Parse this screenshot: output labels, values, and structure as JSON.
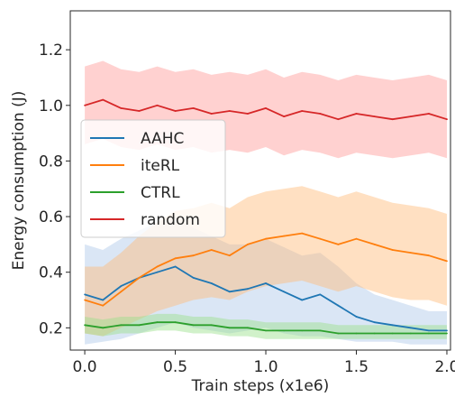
{
  "chart_data": {
    "type": "line",
    "title": "",
    "xlabel": "Train steps (x1e6)",
    "ylabel": "Energy consumption (J)",
    "xlim": [
      -0.08,
      2.02
    ],
    "ylim": [
      0.12,
      1.34
    ],
    "xticks": [
      0.0,
      0.5,
      1.0,
      1.5,
      2.0
    ],
    "xtick_labels": [
      "0.0",
      "0.5",
      "1.0",
      "1.5",
      "2.0"
    ],
    "yticks": [
      0.2,
      0.4,
      0.6,
      0.8,
      1.0,
      1.2
    ],
    "ytick_labels": [
      "0.2",
      "0.4",
      "0.6",
      "0.8",
      "1.0",
      "1.2"
    ],
    "grid": false,
    "legend_position": "center-left",
    "x": [
      0.0,
      0.1,
      0.2,
      0.3,
      0.4,
      0.5,
      0.6,
      0.7,
      0.8,
      0.9,
      1.0,
      1.1,
      1.2,
      1.3,
      1.4,
      1.5,
      1.6,
      1.7,
      1.8,
      1.9,
      2.0
    ],
    "series": [
      {
        "name": "AAHC",
        "color": "#1f77b4",
        "band_color": "#aec7e8",
        "values": [
          0.32,
          0.3,
          0.35,
          0.38,
          0.4,
          0.42,
          0.38,
          0.36,
          0.33,
          0.34,
          0.36,
          0.33,
          0.3,
          0.32,
          0.28,
          0.24,
          0.22,
          0.21,
          0.2,
          0.19,
          0.19
        ],
        "band_lower": [
          0.14,
          0.15,
          0.16,
          0.18,
          0.2,
          0.22,
          0.2,
          0.19,
          0.18,
          0.19,
          0.2,
          0.18,
          0.17,
          0.17,
          0.16,
          0.15,
          0.15,
          0.15,
          0.14,
          0.14,
          0.14
        ],
        "band_upper": [
          0.5,
          0.48,
          0.52,
          0.55,
          0.58,
          0.6,
          0.56,
          0.53,
          0.5,
          0.5,
          0.52,
          0.49,
          0.46,
          0.47,
          0.42,
          0.36,
          0.32,
          0.3,
          0.28,
          0.26,
          0.26
        ]
      },
      {
        "name": "iteRL",
        "color": "#ff7f0e",
        "band_color": "#ffbb78",
        "values": [
          0.3,
          0.28,
          0.33,
          0.38,
          0.42,
          0.45,
          0.46,
          0.48,
          0.46,
          0.5,
          0.52,
          0.53,
          0.54,
          0.52,
          0.5,
          0.52,
          0.5,
          0.48,
          0.47,
          0.46,
          0.44
        ],
        "band_lower": [
          0.18,
          0.17,
          0.2,
          0.23,
          0.26,
          0.28,
          0.3,
          0.31,
          0.3,
          0.33,
          0.35,
          0.36,
          0.37,
          0.35,
          0.33,
          0.35,
          0.33,
          0.31,
          0.3,
          0.3,
          0.28
        ],
        "band_upper": [
          0.42,
          0.42,
          0.47,
          0.53,
          0.58,
          0.62,
          0.63,
          0.65,
          0.63,
          0.67,
          0.69,
          0.7,
          0.71,
          0.69,
          0.67,
          0.69,
          0.67,
          0.65,
          0.64,
          0.63,
          0.61
        ]
      },
      {
        "name": "CTRL",
        "color": "#2ca02c",
        "band_color": "#98df8a",
        "values": [
          0.21,
          0.2,
          0.21,
          0.21,
          0.22,
          0.22,
          0.21,
          0.21,
          0.2,
          0.2,
          0.19,
          0.19,
          0.19,
          0.19,
          0.18,
          0.18,
          0.18,
          0.18,
          0.18,
          0.18,
          0.18
        ],
        "band_lower": [
          0.18,
          0.17,
          0.18,
          0.18,
          0.19,
          0.19,
          0.18,
          0.18,
          0.17,
          0.17,
          0.16,
          0.16,
          0.16,
          0.16,
          0.16,
          0.16,
          0.16,
          0.16,
          0.16,
          0.16,
          0.16
        ],
        "band_upper": [
          0.24,
          0.23,
          0.24,
          0.24,
          0.25,
          0.25,
          0.24,
          0.24,
          0.23,
          0.23,
          0.22,
          0.22,
          0.22,
          0.22,
          0.21,
          0.21,
          0.21,
          0.21,
          0.21,
          0.21,
          0.21
        ]
      },
      {
        "name": "random",
        "color": "#d62728",
        "band_color": "#ff9896",
        "values": [
          1.0,
          1.02,
          0.99,
          0.98,
          1.0,
          0.98,
          0.99,
          0.97,
          0.98,
          0.97,
          0.99,
          0.96,
          0.98,
          0.97,
          0.95,
          0.97,
          0.96,
          0.95,
          0.96,
          0.97,
          0.95
        ],
        "band_lower": [
          0.86,
          0.88,
          0.85,
          0.84,
          0.86,
          0.84,
          0.85,
          0.83,
          0.84,
          0.83,
          0.85,
          0.82,
          0.84,
          0.83,
          0.81,
          0.83,
          0.82,
          0.81,
          0.82,
          0.83,
          0.81
        ],
        "band_upper": [
          1.14,
          1.16,
          1.13,
          1.12,
          1.14,
          1.12,
          1.13,
          1.11,
          1.12,
          1.11,
          1.13,
          1.1,
          1.12,
          1.11,
          1.09,
          1.11,
          1.1,
          1.09,
          1.1,
          1.11,
          1.09
        ]
      }
    ]
  }
}
